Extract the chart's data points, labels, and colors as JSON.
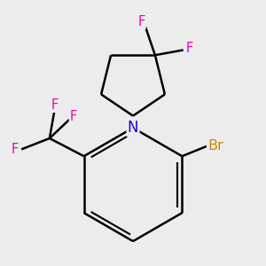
{
  "background_color": "#ececec",
  "bond_color": "#000000",
  "atom_colors": {
    "F": "#ee00aa",
    "N": "#2200dd",
    "Br": "#cc8800"
  },
  "bond_width": 1.8,
  "figsize": [
    3.0,
    3.0
  ],
  "dpi": 100
}
